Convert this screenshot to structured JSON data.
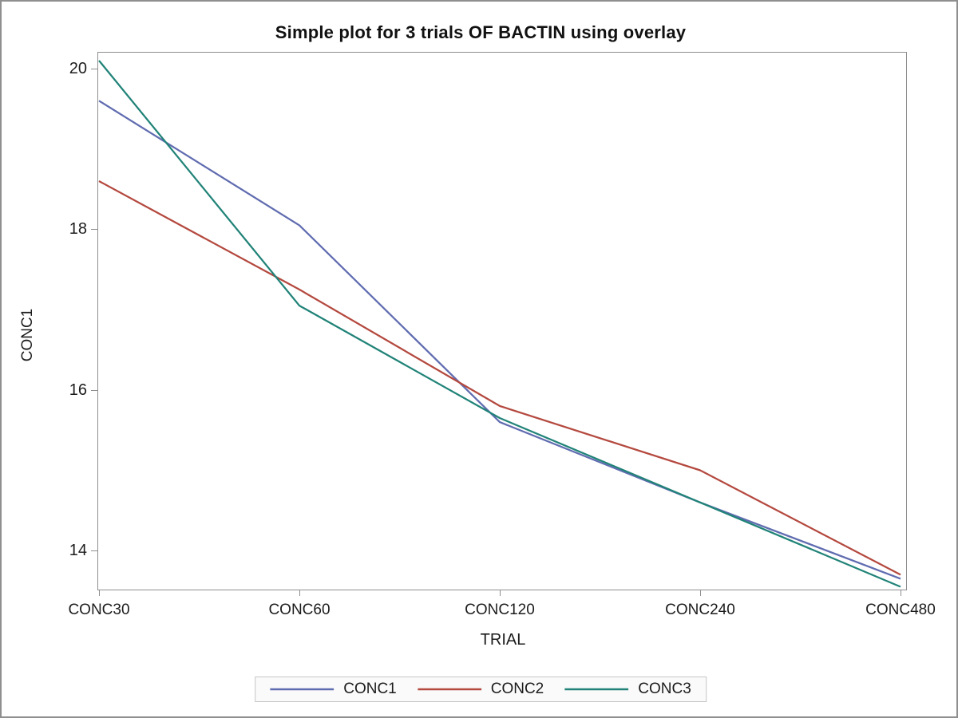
{
  "figure": {
    "background_color": "#ffffff",
    "frame_color": "#8e8e8e",
    "text_color": "#1c1c1c"
  },
  "chart_data": {
    "type": "line",
    "title": "Simple plot for 3 trials OF BACTIN using overlay",
    "xlabel": "TRIAL",
    "ylabel": "CONC1",
    "categories": [
      "CONC30",
      "CONC60",
      "CONC120",
      "CONC240",
      "CONC480"
    ],
    "series": [
      {
        "name": "CONC1",
        "color": "#606CB0",
        "values": [
          19.6,
          18.05,
          15.6,
          14.6,
          13.65
        ]
      },
      {
        "name": "CONC2",
        "color": "#B4493F",
        "values": [
          18.6,
          17.25,
          15.8,
          15.0,
          13.7
        ]
      },
      {
        "name": "CONC3",
        "color": "#218378",
        "values": [
          20.1,
          17.05,
          15.65,
          14.6,
          13.55
        ]
      }
    ],
    "y_ticks": [
      14,
      16,
      18,
      20
    ],
    "ylim": [
      13.51,
      20.21
    ],
    "grid": false,
    "legend_position": "bottom"
  }
}
